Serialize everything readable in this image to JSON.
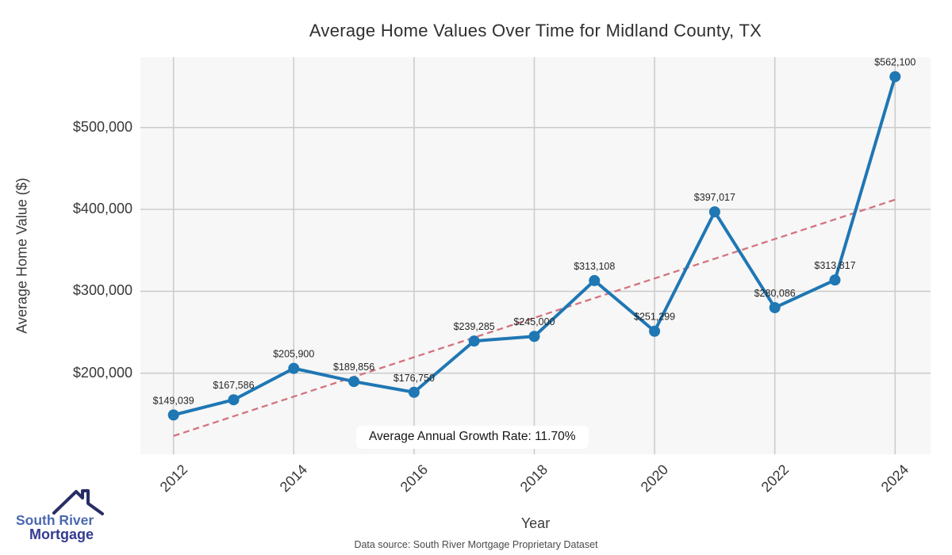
{
  "title": "Average Home Values Over Time for Midland County, TX",
  "chart_data": {
    "type": "line",
    "x": [
      2012,
      2013,
      2014,
      2015,
      2016,
      2017,
      2018,
      2019,
      2020,
      2021,
      2022,
      2023,
      2024
    ],
    "series": [
      {
        "name": "Average Home Value",
        "values": [
          149039,
          167586,
          205900,
          189856,
          176750,
          239285,
          245000,
          313108,
          251299,
          397017,
          280086,
          313817,
          562100
        ]
      }
    ],
    "point_labels": [
      "$149,039",
      "$167,586",
      "$205,900",
      "$189,856",
      "$176,750",
      "$239,285",
      "$245,000",
      "$313,108",
      "$251,299",
      "$397,017",
      "$280,086",
      "$313,817",
      "$562,100"
    ],
    "title": "Average Home Values Over Time for Midland County, TX",
    "xlabel": "Year",
    "ylabel": "Average Home Value ($)",
    "yticks": [
      {
        "value": 500000,
        "label": "$500,000"
      },
      {
        "value": 400000,
        "label": "$400,000"
      },
      {
        "value": 300000,
        "label": "$300,000"
      },
      {
        "value": 200000,
        "label": "$200,000"
      }
    ],
    "xticks": [
      2012,
      2014,
      2016,
      2018,
      2020,
      2022,
      2024
    ],
    "xlim": [
      2011.45,
      2024.59
    ],
    "ylim": [
      101000,
      586000
    ],
    "grid": true,
    "legend": "none",
    "trend_line": {
      "style": "dashed",
      "x": [
        2012,
        2024
      ],
      "values": [
        123400,
        411900
      ]
    },
    "annotation": "Average Annual Growth Rate: 11.70%",
    "colors": {
      "line": "#1f77b4",
      "marker": "#1f77b4",
      "trend": "#d4737f",
      "plot_background": "#f7f7f7",
      "grid": "#cdcdcd",
      "data_label": "#262626"
    }
  },
  "footer": "Data source: South River Mortgage Proprietary Dataset",
  "logo": {
    "line1": "South River",
    "line2": "Mortgage",
    "colors": {
      "roof": "#272e66",
      "line1": "#4b69af",
      "line2": "#333b90"
    }
  }
}
